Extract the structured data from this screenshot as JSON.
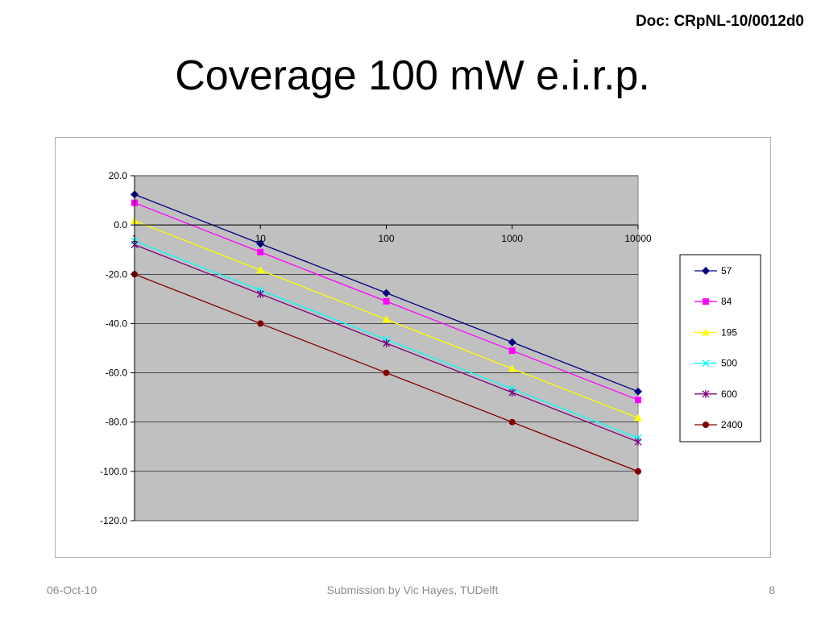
{
  "header": {
    "doc_ref": "Doc: CRpNL-10/0012d0",
    "title": "Coverage 100 mW e.i.r.p."
  },
  "footer": {
    "date": "06-Oct-10",
    "center": "Submission by Vic Hayes, TUDelft",
    "page": "8"
  },
  "chart_data": {
    "type": "line",
    "x_scale": "log",
    "x": [
      1,
      10,
      100,
      1000,
      10000
    ],
    "x_tick_labels": [
      "1",
      "10",
      "100",
      "1000",
      "10000"
    ],
    "ylim": [
      -120,
      20
    ],
    "y_ticks": [
      20,
      0,
      -20,
      -40,
      -60,
      -80,
      -100,
      -120
    ],
    "y_tick_labels": [
      "20.0",
      "0.0",
      "-20.0",
      "-40.0",
      "-60.0",
      "-80.0",
      "-100.0",
      "-120.0"
    ],
    "grid": "horizontal",
    "plot_background": "#c0c0c0",
    "legend_position": "right",
    "series": [
      {
        "name": "57",
        "color": "#000080",
        "marker": "diamond",
        "values": [
          12.4,
          -7.6,
          -27.6,
          -47.6,
          -67.6
        ]
      },
      {
        "name": "84",
        "color": "#ff00ff",
        "marker": "square",
        "values": [
          9.0,
          -11.0,
          -31.0,
          -51.0,
          -71.0
        ]
      },
      {
        "name": "195",
        "color": "#ffff00",
        "marker": "triangle",
        "values": [
          1.7,
          -18.3,
          -38.3,
          -58.3,
          -78.3
        ]
      },
      {
        "name": "500",
        "color": "#00ffff",
        "marker": "x",
        "values": [
          -6.5,
          -26.5,
          -46.5,
          -66.5,
          -86.5
        ]
      },
      {
        "name": "600",
        "color": "#800080",
        "marker": "star",
        "values": [
          -8.0,
          -28.0,
          -48.0,
          -68.0,
          -88.0
        ]
      },
      {
        "name": "2400",
        "color": "#800000",
        "marker": "circle",
        "values": [
          -20.0,
          -40.0,
          -60.0,
          -80.0,
          -100.0
        ]
      }
    ]
  }
}
